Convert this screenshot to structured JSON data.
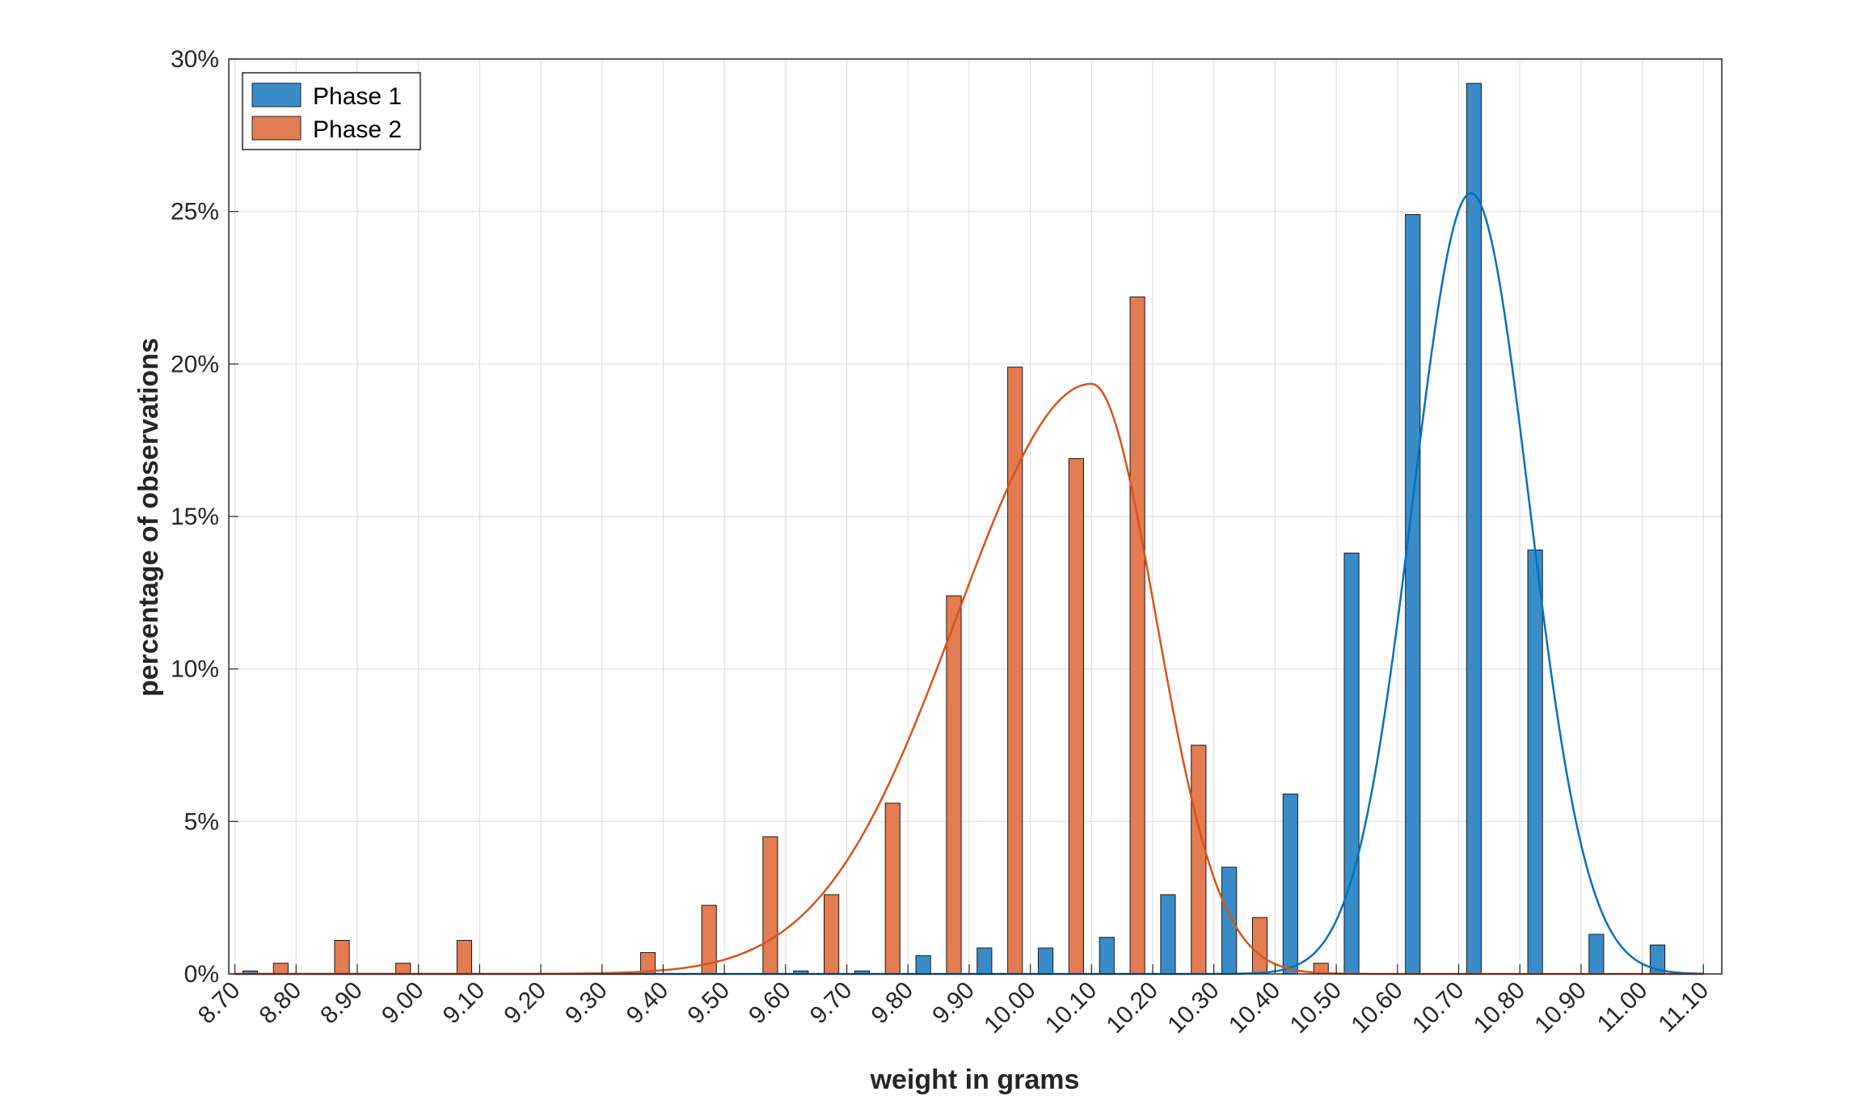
{
  "chart_data": {
    "type": "bar",
    "xlabel": "weight in grams",
    "ylabel": "percentage of observations",
    "xlim": [
      8.69,
      11.13
    ],
    "ylim": [
      0,
      30
    ],
    "grid": true,
    "legend_position": "top-left",
    "x_ticks": [
      "8.70",
      "8.80",
      "8.90",
      "9.00",
      "9.10",
      "9.20",
      "9.30",
      "9.40",
      "9.50",
      "9.60",
      "9.70",
      "9.80",
      "9.90",
      "10.00",
      "10.10",
      "10.20",
      "10.30",
      "10.40",
      "10.50",
      "10.60",
      "10.70",
      "10.80",
      "10.90",
      "11.00",
      "11.10"
    ],
    "y_ticks": [
      "0%",
      "5%",
      "10%",
      "15%",
      "20%",
      "25%",
      "30%"
    ],
    "categories": [
      8.75,
      8.85,
      8.95,
      9.05,
      9.15,
      9.25,
      9.35,
      9.45,
      9.55,
      9.65,
      9.75,
      9.85,
      9.95,
      10.05,
      10.15,
      10.25,
      10.35,
      10.45,
      10.55,
      10.65,
      10.75,
      10.85,
      10.95,
      11.05
    ],
    "series": [
      {
        "name": "Phase 1",
        "color": "#3a8cc8",
        "values": [
          0.1,
          0,
          0,
          0,
          0,
          0,
          0,
          0,
          0,
          0.1,
          0.1,
          0.6,
          0.85,
          0.85,
          1.2,
          2.6,
          3.5,
          5.9,
          13.8,
          24.9,
          29.2,
          13.9,
          1.3,
          0.95
        ]
      },
      {
        "name": "Phase 2",
        "color": "#e37c51",
        "values": [
          0.35,
          1.1,
          0.35,
          1.1,
          0,
          0,
          0.7,
          2.25,
          4.5,
          2.6,
          5.6,
          12.4,
          19.9,
          16.9,
          22.2,
          7.5,
          1.85,
          0.35,
          0,
          0,
          0,
          0,
          0,
          0
        ]
      }
    ],
    "fit_curves": [
      {
        "series": "Phase 1",
        "type": "normal",
        "color": "#0072bd",
        "mean": 10.72,
        "sd": 0.095,
        "peak": 25.6
      },
      {
        "series": "Phase 2",
        "type": "skewed",
        "color": "#d95319",
        "mode": 10.1,
        "sd_left": 0.22,
        "sd_right": 0.105,
        "peak": 19.35
      }
    ]
  }
}
